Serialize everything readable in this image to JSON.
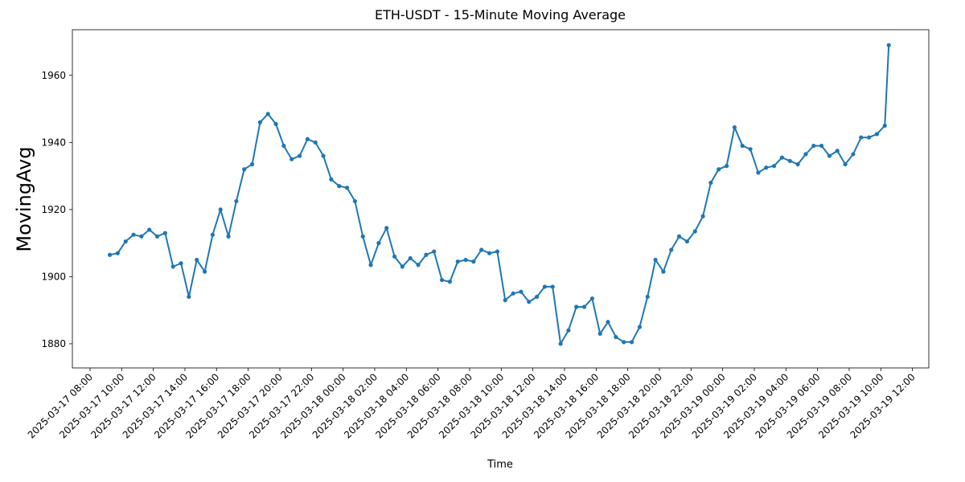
{
  "chart_data": {
    "type": "line",
    "title": "ETH-USDT - 15-Minute Moving Average",
    "x_label": "Time",
    "y_label": "MovingAvg",
    "color": "#1f77b4",
    "x": [
      "2025-03-17 09:15",
      "2025-03-17 09:45",
      "2025-03-17 10:15",
      "2025-03-17 10:45",
      "2025-03-17 11:15",
      "2025-03-17 11:45",
      "2025-03-17 12:15",
      "2025-03-17 12:45",
      "2025-03-17 13:15",
      "2025-03-17 13:45",
      "2025-03-17 14:15",
      "2025-03-17 14:45",
      "2025-03-17 15:15",
      "2025-03-17 15:45",
      "2025-03-17 16:15",
      "2025-03-17 16:45",
      "2025-03-17 17:15",
      "2025-03-17 17:45",
      "2025-03-17 18:15",
      "2025-03-17 18:45",
      "2025-03-17 19:15",
      "2025-03-17 19:45",
      "2025-03-17 20:15",
      "2025-03-17 20:45",
      "2025-03-17 21:15",
      "2025-03-17 21:45",
      "2025-03-17 22:15",
      "2025-03-17 22:45",
      "2025-03-17 23:15",
      "2025-03-17 23:45",
      "2025-03-18 00:15",
      "2025-03-18 00:45",
      "2025-03-18 01:15",
      "2025-03-18 01:45",
      "2025-03-18 02:15",
      "2025-03-18 02:45",
      "2025-03-18 03:15",
      "2025-03-18 03:45",
      "2025-03-18 04:15",
      "2025-03-18 04:45",
      "2025-03-18 05:15",
      "2025-03-18 05:45",
      "2025-03-18 06:15",
      "2025-03-18 06:45",
      "2025-03-18 07:15",
      "2025-03-18 07:45",
      "2025-03-18 08:15",
      "2025-03-18 08:45",
      "2025-03-18 09:15",
      "2025-03-18 09:45",
      "2025-03-18 10:15",
      "2025-03-18 10:45",
      "2025-03-18 11:15",
      "2025-03-18 11:45",
      "2025-03-18 12:15",
      "2025-03-18 12:45",
      "2025-03-18 13:15",
      "2025-03-18 13:45",
      "2025-03-18 14:15",
      "2025-03-18 14:45",
      "2025-03-18 15:15",
      "2025-03-18 15:45",
      "2025-03-18 16:15",
      "2025-03-18 16:45",
      "2025-03-18 17:15",
      "2025-03-18 17:45",
      "2025-03-18 18:15",
      "2025-03-18 18:45",
      "2025-03-18 19:15",
      "2025-03-18 19:45",
      "2025-03-18 20:15",
      "2025-03-18 20:45",
      "2025-03-18 21:15",
      "2025-03-18 21:45",
      "2025-03-18 22:15",
      "2025-03-18 22:45",
      "2025-03-18 23:15",
      "2025-03-18 23:45",
      "2025-03-19 00:15",
      "2025-03-19 00:45",
      "2025-03-19 01:15",
      "2025-03-19 01:45",
      "2025-03-19 02:15",
      "2025-03-19 02:45",
      "2025-03-19 03:15",
      "2025-03-19 03:45",
      "2025-03-19 04:15",
      "2025-03-19 04:45",
      "2025-03-19 05:15",
      "2025-03-19 05:45",
      "2025-03-19 06:15",
      "2025-03-19 06:45",
      "2025-03-19 07:15",
      "2025-03-19 07:45",
      "2025-03-19 08:15",
      "2025-03-19 08:45",
      "2025-03-19 09:15",
      "2025-03-19 09:45",
      "2025-03-19 10:15",
      "2025-03-19 10:30"
    ],
    "values": [
      1906.5,
      1907,
      1910.5,
      1912.5,
      1912,
      1914,
      1912,
      1913,
      1903,
      1904,
      1894,
      1905,
      1901.5,
      1912.5,
      1920,
      1912,
      1922.5,
      1932,
      1933.5,
      1946,
      1948.5,
      1945.5,
      1939,
      1935,
      1936,
      1941,
      1940,
      1936,
      1929,
      1927,
      1926.5,
      1922.5,
      1912,
      1903.5,
      1910,
      1914.5,
      1906,
      1903,
      1905.5,
      1903.5,
      1906.5,
      1907.5,
      1899,
      1898.5,
      1904.5,
      1905,
      1904.5,
      1908,
      1907,
      1907.5,
      1893,
      1895,
      1895.5,
      1892.5,
      1894,
      1897,
      1897,
      1880,
      1884,
      1891,
      1891,
      1893.5,
      1883,
      1886.5,
      1882,
      1880.5,
      1880.5,
      1885,
      1894,
      1905,
      1901.5,
      1908,
      1912,
      1910.5,
      1913.5,
      1918,
      1928,
      1932,
      1933,
      1944.5,
      1939,
      1938,
      1931,
      1932.5,
      1933,
      1935.5,
      1934.5,
      1933.5,
      1936.5,
      1939,
      1939,
      1936,
      1937.5,
      1933.5,
      1936.5,
      1941.5,
      1941.5,
      1942.5,
      1945,
      1969
    ],
    "xlim": [
      "2025-03-17 06:53",
      "2025-03-19 13:02"
    ],
    "xticks": [
      "2025-03-17 08:00",
      "2025-03-17 10:00",
      "2025-03-17 12:00",
      "2025-03-17 14:00",
      "2025-03-17 16:00",
      "2025-03-17 18:00",
      "2025-03-17 20:00",
      "2025-03-17 22:00",
      "2025-03-18 00:00",
      "2025-03-18 02:00",
      "2025-03-18 04:00",
      "2025-03-18 06:00",
      "2025-03-18 08:00",
      "2025-03-18 10:00",
      "2025-03-18 12:00",
      "2025-03-18 14:00",
      "2025-03-18 16:00",
      "2025-03-18 18:00",
      "2025-03-18 20:00",
      "2025-03-18 22:00",
      "2025-03-19 00:00",
      "2025-03-19 02:00",
      "2025-03-19 04:00",
      "2025-03-19 06:00",
      "2025-03-19 08:00",
      "2025-03-19 10:00",
      "2025-03-19 12:00"
    ],
    "ylim": [
      1872.8,
      1973.6
    ],
    "yticks": [
      1880,
      1900,
      1920,
      1940,
      1960
    ]
  }
}
